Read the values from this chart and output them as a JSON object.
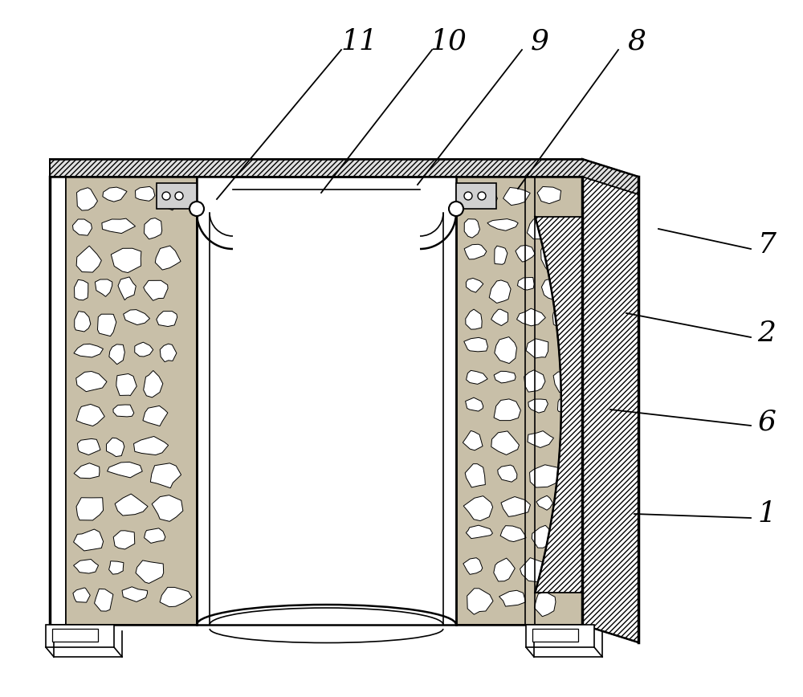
{
  "bg_color": "#ffffff",
  "line_color": "#000000",
  "label_fontsize": 26,
  "figsize": [
    10.0,
    8.68
  ],
  "dpi": 100,
  "labels": [
    "11",
    "10",
    "9",
    "8",
    "7",
    "2",
    "6",
    "1"
  ],
  "stone_color": "#c8bfa8"
}
